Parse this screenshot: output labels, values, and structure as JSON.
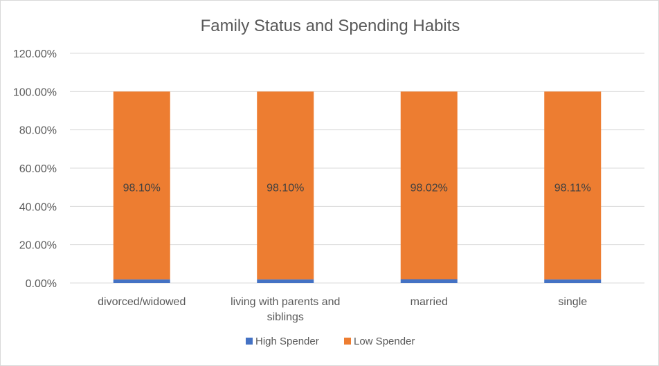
{
  "chart_data": {
    "type": "bar",
    "stacked": true,
    "title": "Family Status and Spending Habits",
    "xlabel": "",
    "ylabel": "",
    "ylim": [
      0,
      1.2
    ],
    "yticks": [
      "0.00%",
      "20.00%",
      "40.00%",
      "60.00%",
      "80.00%",
      "100.00%",
      "120.00%"
    ],
    "categories": [
      [
        "divorced/widowed"
      ],
      [
        "living with parents and",
        "siblings"
      ],
      [
        "married"
      ],
      [
        "single"
      ]
    ],
    "series": [
      {
        "name": "High Spender",
        "color": "#4472c4",
        "values": [
          0.019,
          0.019,
          0.0198,
          0.0189
        ]
      },
      {
        "name": "Low Spender",
        "color": "#ed7d31",
        "values": [
          0.981,
          0.981,
          0.9802,
          0.9811
        ],
        "labels": [
          "98.10%",
          "98.10%",
          "98.02%",
          "98.11%"
        ]
      }
    ],
    "grid": true,
    "legend_position": "bottom"
  }
}
